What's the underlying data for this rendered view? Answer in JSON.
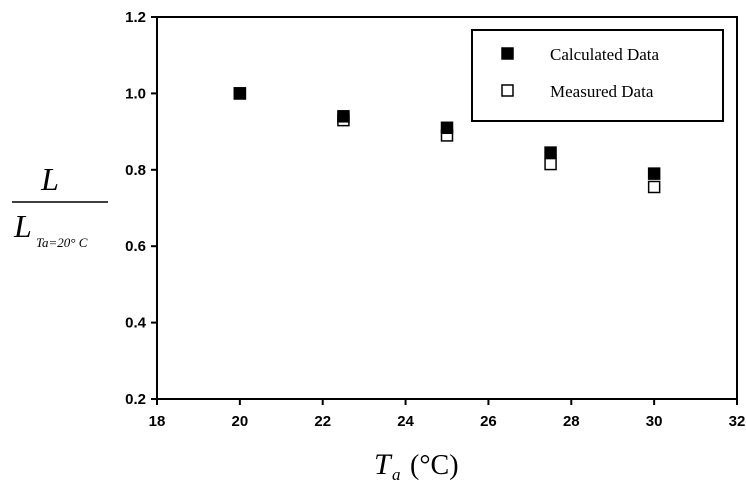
{
  "chart_data": {
    "type": "scatter",
    "title": "",
    "xlabel": {
      "symbol": "T",
      "subscript": "a",
      "unit": "(°C)"
    },
    "ylabel": {
      "numerator": "L",
      "denominator": "L",
      "denominator_subscript": "Ta=20° C"
    },
    "xlim": [
      18,
      32
    ],
    "ylim": [
      0.2,
      1.2
    ],
    "x_ticks": [
      "18",
      "20",
      "22",
      "24",
      "26",
      "28",
      "30",
      "32"
    ],
    "y_ticks": [
      "0.2",
      "0.4",
      "0.6",
      "0.8",
      "1.0",
      "1.2"
    ],
    "grid": false,
    "legend_position": "top-right",
    "x": [
      20,
      22.5,
      25,
      27.5,
      30
    ],
    "series": [
      {
        "name": "Calculated Data",
        "marker": "filled-square",
        "color": "#000000",
        "values": [
          1.0,
          0.94,
          0.91,
          0.845,
          0.79
        ]
      },
      {
        "name": "Measured Data",
        "marker": "open-square",
        "color": "#000000",
        "values": [
          1.0,
          0.93,
          0.89,
          0.815,
          0.755
        ]
      }
    ]
  }
}
